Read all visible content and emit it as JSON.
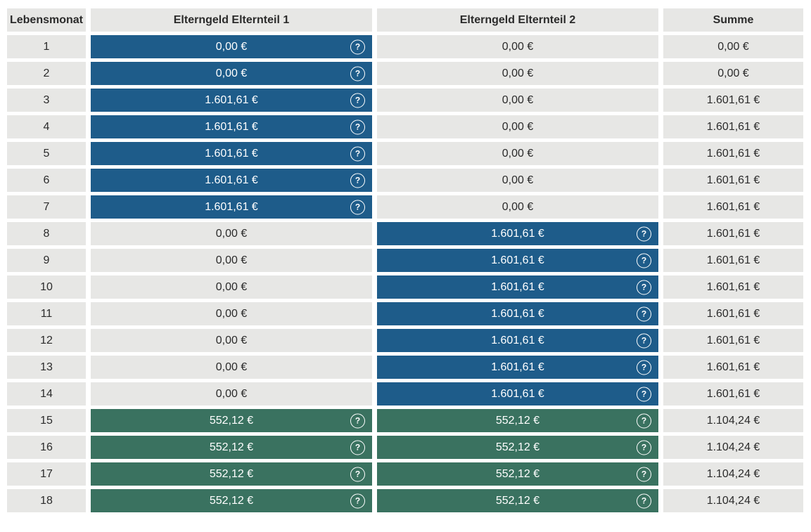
{
  "colors": {
    "blue": "#1E5C8A",
    "green": "#3A7260",
    "cell_gray": "#E7E7E5",
    "text_dark": "#2B2B2B",
    "text_light": "#FFFFFF"
  },
  "table": {
    "help_icon": "?",
    "columns": {
      "month": "Lebensmonat",
      "parent1": "Elterngeld Elternteil 1",
      "parent2": "Elterngeld Elternteil 2",
      "sum": "Summe"
    },
    "rows": [
      {
        "month": "1",
        "p1": {
          "value": "0,00 €",
          "variant": "blue",
          "icon": true
        },
        "p2": {
          "value": "0,00 €",
          "variant": "plain",
          "icon": false
        },
        "sum": "0,00 €"
      },
      {
        "month": "2",
        "p1": {
          "value": "0,00 €",
          "variant": "blue",
          "icon": true
        },
        "p2": {
          "value": "0,00 €",
          "variant": "plain",
          "icon": false
        },
        "sum": "0,00 €"
      },
      {
        "month": "3",
        "p1": {
          "value": "1.601,61 €",
          "variant": "blue",
          "icon": true
        },
        "p2": {
          "value": "0,00 €",
          "variant": "plain",
          "icon": false
        },
        "sum": "1.601,61 €"
      },
      {
        "month": "4",
        "p1": {
          "value": "1.601,61 €",
          "variant": "blue",
          "icon": true
        },
        "p2": {
          "value": "0,00 €",
          "variant": "plain",
          "icon": false
        },
        "sum": "1.601,61 €"
      },
      {
        "month": "5",
        "p1": {
          "value": "1.601,61 €",
          "variant": "blue",
          "icon": true
        },
        "p2": {
          "value": "0,00 €",
          "variant": "plain",
          "icon": false
        },
        "sum": "1.601,61 €"
      },
      {
        "month": "6",
        "p1": {
          "value": "1.601,61 €",
          "variant": "blue",
          "icon": true
        },
        "p2": {
          "value": "0,00 €",
          "variant": "plain",
          "icon": false
        },
        "sum": "1.601,61 €"
      },
      {
        "month": "7",
        "p1": {
          "value": "1.601,61 €",
          "variant": "blue",
          "icon": true
        },
        "p2": {
          "value": "0,00 €",
          "variant": "plain",
          "icon": false
        },
        "sum": "1.601,61 €"
      },
      {
        "month": "8",
        "p1": {
          "value": "0,00 €",
          "variant": "plain",
          "icon": false
        },
        "p2": {
          "value": "1.601,61 €",
          "variant": "blue",
          "icon": true
        },
        "sum": "1.601,61 €"
      },
      {
        "month": "9",
        "p1": {
          "value": "0,00 €",
          "variant": "plain",
          "icon": false
        },
        "p2": {
          "value": "1.601,61 €",
          "variant": "blue",
          "icon": true
        },
        "sum": "1.601,61 €"
      },
      {
        "month": "10",
        "p1": {
          "value": "0,00 €",
          "variant": "plain",
          "icon": false
        },
        "p2": {
          "value": "1.601,61 €",
          "variant": "blue",
          "icon": true
        },
        "sum": "1.601,61 €"
      },
      {
        "month": "11",
        "p1": {
          "value": "0,00 €",
          "variant": "plain",
          "icon": false
        },
        "p2": {
          "value": "1.601,61 €",
          "variant": "blue",
          "icon": true
        },
        "sum": "1.601,61 €"
      },
      {
        "month": "12",
        "p1": {
          "value": "0,00 €",
          "variant": "plain",
          "icon": false
        },
        "p2": {
          "value": "1.601,61 €",
          "variant": "blue",
          "icon": true
        },
        "sum": "1.601,61 €"
      },
      {
        "month": "13",
        "p1": {
          "value": "0,00 €",
          "variant": "plain",
          "icon": false
        },
        "p2": {
          "value": "1.601,61 €",
          "variant": "blue",
          "icon": true
        },
        "sum": "1.601,61 €"
      },
      {
        "month": "14",
        "p1": {
          "value": "0,00 €",
          "variant": "plain",
          "icon": false
        },
        "p2": {
          "value": "1.601,61 €",
          "variant": "blue",
          "icon": true
        },
        "sum": "1.601,61 €"
      },
      {
        "month": "15",
        "p1": {
          "value": "552,12 €",
          "variant": "green",
          "icon": true
        },
        "p2": {
          "value": "552,12 €",
          "variant": "green",
          "icon": true
        },
        "sum": "1.104,24 €"
      },
      {
        "month": "16",
        "p1": {
          "value": "552,12 €",
          "variant": "green",
          "icon": true
        },
        "p2": {
          "value": "552,12 €",
          "variant": "green",
          "icon": true
        },
        "sum": "1.104,24 €"
      },
      {
        "month": "17",
        "p1": {
          "value": "552,12 €",
          "variant": "green",
          "icon": true
        },
        "p2": {
          "value": "552,12 €",
          "variant": "green",
          "icon": true
        },
        "sum": "1.104,24 €"
      },
      {
        "month": "18",
        "p1": {
          "value": "552,12 €",
          "variant": "green",
          "icon": true
        },
        "p2": {
          "value": "552,12 €",
          "variant": "green",
          "icon": true
        },
        "sum": "1.104,24 €"
      }
    ]
  }
}
